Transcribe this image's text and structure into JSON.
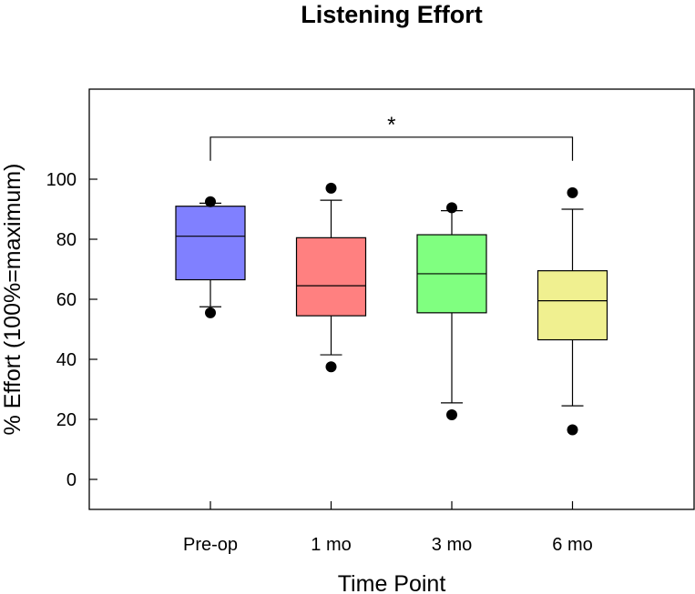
{
  "chart_data": {
    "type": "box",
    "title": "Listening Effort",
    "xlabel": "Time Point",
    "ylabel": "% Effort (100%=maximum)",
    "ylim": [
      -10,
      130
    ],
    "yticks": [
      0,
      20,
      40,
      60,
      80,
      100
    ],
    "categories": [
      "Pre-op",
      "1 mo",
      "3 mo",
      "6 mo"
    ],
    "boxes": [
      {
        "name": "Pre-op",
        "color": "#8080ff",
        "q1": 66.5,
        "median": 81,
        "q3": 91,
        "whisker_low": 57.5,
        "whisker_high": 92,
        "outliers": [
          92.5,
          55.5
        ]
      },
      {
        "name": "1 mo",
        "color": "#ff8080",
        "q1": 54.5,
        "median": 64.5,
        "q3": 80.5,
        "whisker_low": 41.5,
        "whisker_high": 93,
        "outliers": [
          97,
          37.5
        ]
      },
      {
        "name": "3 mo",
        "color": "#80ff80",
        "q1": 55.5,
        "median": 68.5,
        "q3": 81.5,
        "whisker_low": 25.5,
        "whisker_high": 89.5,
        "outliers": [
          90.5,
          21.5
        ]
      },
      {
        "name": "6 mo",
        "color": "#f0f090",
        "q1": 46.5,
        "median": 59.5,
        "q3": 69.5,
        "whisker_low": 24.5,
        "whisker_high": 90,
        "outliers": [
          95.5,
          16.5
        ]
      }
    ],
    "significance": {
      "from": "Pre-op",
      "to": "6 mo",
      "level": 114,
      "label": "*"
    },
    "grid": false
  }
}
